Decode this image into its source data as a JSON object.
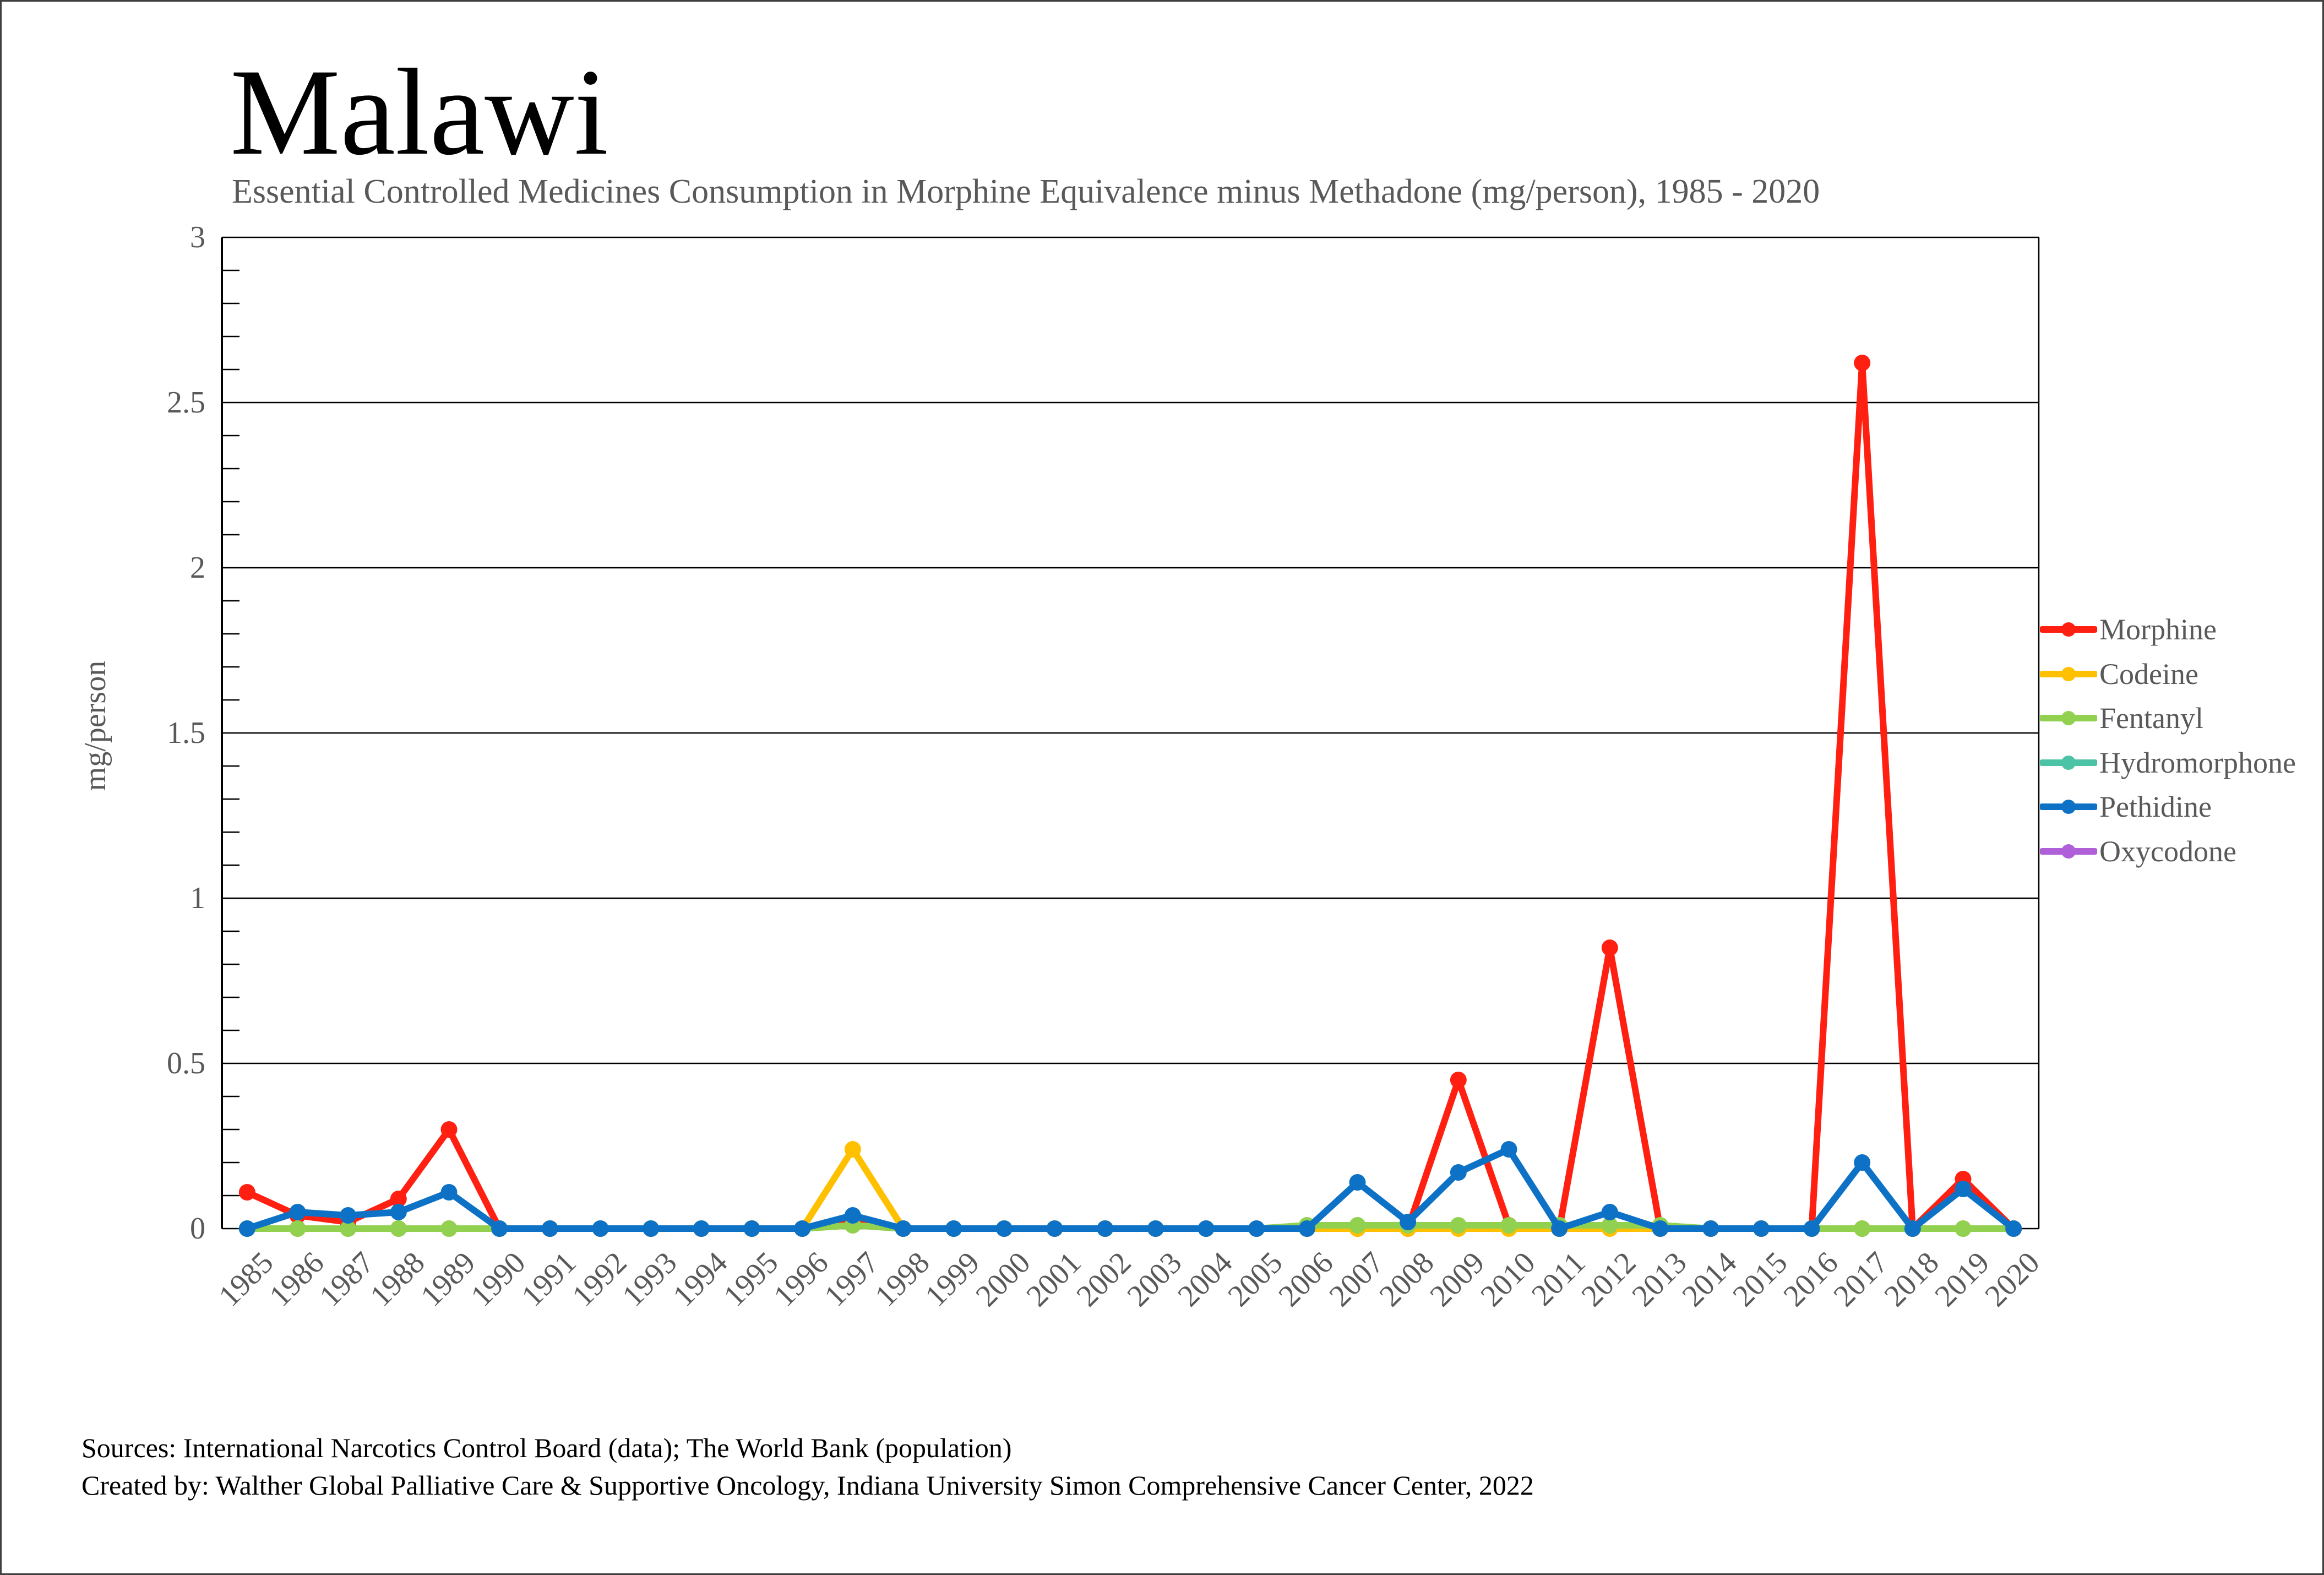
{
  "title": "Malawi",
  "subtitle": "Essential Controlled Medicines Consumption in Morphine Equivalence minus Methadone (mg/person), 1985 - 2020",
  "footer": {
    "line1": "Sources: International Narcotics Control Board (data); The World Bank (population)",
    "line2": "Created by: Walther Global Palliative Care & Supportive Oncology, Indiana University Simon Comprehensive Cancer Center, 2022"
  },
  "chart_data": {
    "type": "line",
    "title": "Malawi",
    "subtitle": "Essential Controlled Medicines Consumption in Morphine Equivalence minus Methadone (mg/person), 1985 - 2020",
    "xlabel": "",
    "ylabel": "mg/person",
    "ylim": [
      0,
      3
    ],
    "ytick_step": 0.5,
    "ytick_labels": [
      "0",
      "0.5",
      "1",
      "1.5",
      "2",
      "2.5",
      "3"
    ],
    "y_minor_tick_step": 0.1,
    "grid": true,
    "legend_position": "right",
    "x": [
      1985,
      1986,
      1987,
      1988,
      1989,
      1990,
      1991,
      1992,
      1993,
      1994,
      1995,
      1996,
      1997,
      1998,
      1999,
      2000,
      2001,
      2002,
      2003,
      2004,
      2005,
      2006,
      2007,
      2008,
      2009,
      2010,
      2011,
      2012,
      2013,
      2014,
      2015,
      2016,
      2017,
      2018,
      2019,
      2020
    ],
    "series": [
      {
        "name": "Morphine",
        "color": "#FF2012",
        "values": [
          0.11,
          0.04,
          0.02,
          0.09,
          0.3,
          0,
          0,
          0,
          0,
          0,
          0,
          0,
          0.03,
          0,
          0,
          0,
          0,
          0,
          0,
          0,
          0,
          0,
          0,
          0,
          0.45,
          0.01,
          0,
          0.85,
          0,
          0,
          0,
          0,
          2.62,
          0,
          0.15,
          0
        ]
      },
      {
        "name": "Codeine",
        "color": "#FFC000",
        "values": [
          0,
          0,
          0,
          0,
          0,
          0,
          0,
          0,
          0,
          0,
          0,
          0,
          0.24,
          0,
          0,
          0,
          0,
          0,
          0,
          0,
          0,
          0,
          0,
          0,
          0,
          0,
          0,
          0,
          0,
          0,
          0,
          0,
          0,
          0,
          0,
          0
        ]
      },
      {
        "name": "Fentanyl",
        "color": "#92D050",
        "values": [
          0,
          0,
          0,
          0,
          0,
          0,
          0,
          0,
          0,
          0,
          0,
          0,
          0.01,
          0,
          0,
          0,
          0,
          0,
          0,
          0,
          0,
          0.01,
          0.01,
          0.01,
          0.01,
          0.01,
          0.01,
          0.01,
          0.01,
          0,
          0,
          0,
          0,
          0,
          0,
          0
        ]
      },
      {
        "name": "Hydromorphone",
        "color": "#4DC3A5",
        "values": null
      },
      {
        "name": "Pethidine",
        "color": "#0D72C6",
        "values": [
          0,
          0.05,
          0.04,
          0.05,
          0.11,
          0,
          0,
          0,
          0,
          0,
          0,
          0,
          0.04,
          0,
          0,
          0,
          0,
          0,
          0,
          0,
          0,
          0,
          0.14,
          0.02,
          0.17,
          0.24,
          0,
          0.05,
          0,
          0,
          0,
          0,
          0.2,
          0,
          0.12,
          0
        ]
      },
      {
        "name": "Oxycodone",
        "color": "#AF60D8",
        "values": null
      }
    ]
  },
  "layout_note": "values in mg/person read from gridlines at 0.5 intervals"
}
